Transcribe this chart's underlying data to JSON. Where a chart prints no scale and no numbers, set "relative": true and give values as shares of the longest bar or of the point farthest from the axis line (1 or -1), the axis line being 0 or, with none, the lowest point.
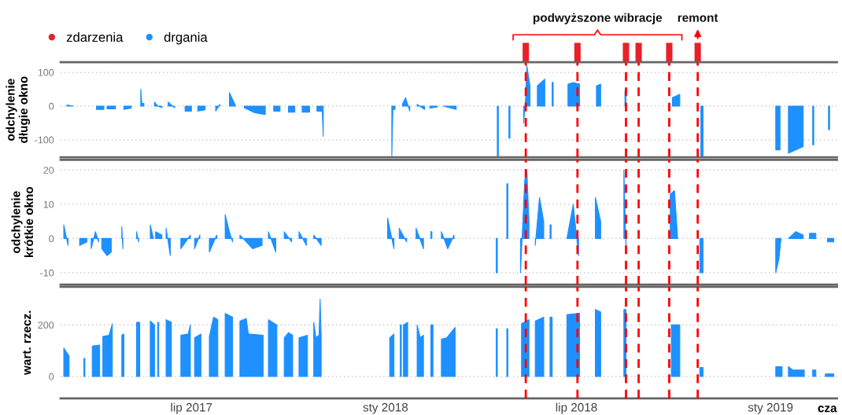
{
  "chart_data": [
    {
      "type": "bar",
      "relative": true,
      "xlim": [
        "2017-02-27",
        "2019-03-05"
      ],
      "tick_labels": false,
      "legend": "top left",
      "series": [
        {
          "name": "zdarzenia",
          "color": "#e8202a",
          "x": [
            "2018-05-14",
            "2018-07-02",
            "2018-08-17",
            "2018-08-29",
            "2018-09-27",
            "2018-10-24"
          ],
          "values": [
            1,
            1,
            1,
            1,
            1,
            1
          ]
        }
      ],
      "annotations": [
        "podwyższone wibracje",
        "remont"
      ]
    },
    {
      "type": "area",
      "ylabel": "odchylenie\ndługie okno",
      "xlim": [
        "2017-02-27",
        "2019-03-05"
      ],
      "ylim": [
        -152,
        130
      ],
      "yticks": [
        -100,
        0,
        100
      ],
      "grid": "y",
      "tick_labels": "y",
      "ref_lines": [
        {
          "axis": "x",
          "value": "2018-05-14",
          "color": "#ff0000",
          "line_style": "dashed"
        },
        {
          "axis": "x",
          "value": "2018-07-02",
          "color": "#ff0000",
          "line_style": "dashed"
        },
        {
          "axis": "x",
          "value": "2018-08-17",
          "color": "#ff0000",
          "line_style": "dashed"
        },
        {
          "axis": "x",
          "value": "2018-08-29",
          "color": "#ff0000",
          "line_style": "dashed"
        },
        {
          "axis": "x",
          "value": "2018-09-27",
          "color": "#ff0000",
          "line_style": "dashed"
        },
        {
          "axis": "x",
          "value": "2018-10-24",
          "color": "#ff0000",
          "line_style": "dashed"
        }
      ],
      "series": [
        {
          "name": "drgania",
          "color": "#1e90ff",
          "x": [
            "2017-03-05",
            "2017-03-11",
            "2017-03-20",
            "2017-04-02",
            "2017-04-09",
            "2017-04-10",
            "2017-04-12",
            "2017-04-20",
            "2017-04-24",
            "2017-04-28",
            "2017-05-05",
            "2017-05-09",
            "2017-05-14",
            "2017-05-15",
            "2017-05-17",
            "2017-05-20",
            "2017-05-27",
            "2017-05-30",
            "2017-06-03",
            "2017-06-06",
            "2017-06-09",
            "2017-06-15",
            "2017-06-20",
            "2017-06-25",
            "2017-07-01",
            "2017-07-04",
            "2017-07-07",
            "2017-07-14",
            "2017-07-18",
            "2017-07-24",
            "2017-07-28",
            "2017-08-01",
            "2017-08-06",
            "2017-08-09",
            "2017-08-12",
            "2017-08-16",
            "2017-08-20",
            "2017-08-30",
            "2017-09-09",
            "2017-09-13",
            "2017-09-17",
            "2017-09-23",
            "2017-09-27",
            "2017-10-01",
            "2017-10-07",
            "2017-10-10",
            "2017-10-14",
            "2017-10-21",
            "2017-10-24",
            "2017-10-28",
            "2017-11-02",
            "2017-11-03",
            "2017-12-15",
            "2018-01-07",
            "2018-01-08",
            "2018-01-10",
            "2018-01-13",
            "2018-01-17",
            "2018-01-20",
            "2018-01-24",
            "2018-01-28",
            "2018-01-31",
            "2018-02-07",
            "2018-02-10",
            "2018-02-12",
            "2018-02-19",
            "2018-02-21",
            "2018-02-25",
            "2018-03-09",
            "2018-04-01",
            "2018-04-17",
            "2018-04-18",
            "2018-04-22",
            "2018-04-28",
            "2018-04-29",
            "2018-05-05",
            "2018-05-12",
            "2018-05-14",
            "2018-05-15",
            "2018-05-18",
            "2018-05-21",
            "2018-05-25",
            "2018-06-01",
            "2018-06-04",
            "2018-06-08",
            "2018-06-09",
            "2018-06-15",
            "2018-06-23",
            "2018-06-28",
            "2018-07-04",
            "2018-07-12",
            "2018-07-20",
            "2018-07-24",
            "2018-08-05",
            "2018-08-16",
            "2018-08-17",
            "2018-09-10",
            "2018-09-30",
            "2018-10-07",
            "2018-10-20",
            "2018-10-27",
            "2018-10-29",
            "2018-12-01",
            "2019-01-06",
            "2019-01-10",
            "2019-01-14",
            "2019-01-18",
            "2019-02-01",
            "2019-02-05",
            "2019-02-10",
            "2019-02-11",
            "2019-02-18",
            "2019-02-25",
            "2019-02-26"
          ],
          "values": [
            3,
            0,
            null,
            -10,
            -10,
            null,
            -8,
            -8,
            null,
            -10,
            -6,
            null,
            50,
            8,
            8,
            null,
            12,
            0,
            -5,
            null,
            12,
            -5,
            null,
            -15,
            -15,
            null,
            -15,
            -11,
            null,
            -15,
            5,
            null,
            40,
            20,
            0,
            null,
            -5,
            -20,
            -25,
            null,
            -15,
            -15,
            null,
            -18,
            -18,
            null,
            -18,
            -18,
            null,
            -15,
            -15,
            -90,
            null,
            -149,
            -10,
            -10,
            null,
            5,
            25,
            -15,
            null,
            5,
            -10,
            null,
            -6,
            -3,
            null,
            0,
            -10,
            null,
            -149,
            -149,
            null,
            -95,
            -95,
            null,
            -50,
            30,
            120,
            60,
            null,
            60,
            80,
            null,
            70,
            70,
            null,
            65,
            70,
            65,
            null,
            60,
            65,
            null,
            45,
            45,
            null,
            25,
            35,
            null,
            -149,
            -149,
            null,
            -130,
            -130,
            null,
            -140,
            -120,
            null,
            -115,
            -115,
            null,
            -70,
            -70
          ]
        }
      ]
    },
    {
      "type": "area",
      "ylabel": "odchylenie\nkrótkie okno",
      "xlim": [
        "2017-02-27",
        "2019-03-05"
      ],
      "ylim": [
        -13.5,
        23
      ],
      "yticks": [
        -10,
        0,
        10,
        20
      ],
      "grid": "y",
      "tick_labels": "y",
      "ref_lines": [
        {
          "axis": "x",
          "value": "2018-05-14",
          "color": "#ff0000",
          "line_style": "dashed"
        },
        {
          "axis": "x",
          "value": "2018-07-02",
          "color": "#ff0000",
          "line_style": "dashed"
        },
        {
          "axis": "x",
          "value": "2018-08-17",
          "color": "#ff0000",
          "line_style": "dashed"
        },
        {
          "axis": "x",
          "value": "2018-08-29",
          "color": "#ff0000",
          "line_style": "dashed"
        },
        {
          "axis": "x",
          "value": "2018-09-27",
          "color": "#ff0000",
          "line_style": "dashed"
        },
        {
          "axis": "x",
          "value": "2018-10-24",
          "color": "#ff0000",
          "line_style": "dashed"
        }
      ],
      "series": [
        {
          "name": "drgania",
          "color": "#1e90ff",
          "x": [
            "2017-03-02",
            "2017-03-06",
            "2017-03-14",
            "2017-03-17",
            "2017-03-24",
            "2017-03-26",
            "2017-03-28",
            "2017-04-01",
            "2017-04-04",
            "2017-04-06",
            "2017-04-07",
            "2017-04-12",
            "2017-04-16",
            "2017-04-22",
            "2017-04-26",
            "2017-04-27",
            "2017-05-05",
            "2017-05-10",
            "2017-05-12",
            "2017-05-18",
            "2017-05-23",
            "2017-05-26",
            "2017-05-27",
            "2017-05-28",
            "2017-06-03",
            "2017-06-05",
            "2017-06-07",
            "2017-06-11",
            "2017-06-17",
            "2017-06-21",
            "2017-06-30",
            "2017-07-02",
            "2017-07-04",
            "2017-07-09",
            "2017-07-14",
            "2017-07-18",
            "2017-07-25",
            "2017-07-29",
            "2017-08-02",
            "2017-08-06",
            "2017-08-09",
            "2017-08-13",
            "2017-08-16",
            "2017-08-28",
            "2017-09-06",
            "2017-09-09",
            "2017-09-12",
            "2017-09-19",
            "2017-09-23",
            "2017-09-27",
            "2017-10-04",
            "2017-10-08",
            "2017-10-11",
            "2017-10-18",
            "2017-10-22",
            "2017-10-25",
            "2017-11-01",
            "2017-12-15",
            "2018-01-03",
            "2018-01-09",
            "2018-01-12",
            "2018-01-14",
            "2018-01-21",
            "2018-01-26",
            "2018-01-30",
            "2018-02-06",
            "2018-02-09",
            "2018-02-13",
            "2018-02-14",
            "2018-02-19",
            "2018-02-23",
            "2018-03-01",
            "2018-03-07",
            "2018-04-01",
            "2018-04-16",
            "2018-04-17",
            "2018-04-22",
            "2018-04-26",
            "2018-04-27",
            "2018-05-04",
            "2018-05-09",
            "2018-05-13",
            "2018-05-15",
            "2018-05-17",
            "2018-05-20",
            "2018-05-23",
            "2018-05-27",
            "2018-05-31",
            "2018-06-03",
            "2018-06-06",
            "2018-06-07",
            "2018-06-15",
            "2018-06-22",
            "2018-06-28",
            "2018-07-03",
            "2018-07-12",
            "2018-07-19",
            "2018-07-24",
            "2018-08-05",
            "2018-08-15",
            "2018-08-17",
            "2018-09-10",
            "2018-09-28",
            "2018-10-02",
            "2018-10-05",
            "2018-10-20",
            "2018-10-26",
            "2018-10-29",
            "2018-12-01",
            "2019-01-06",
            "2019-01-09",
            "2019-01-11",
            "2019-01-15",
            "2019-01-18",
            "2019-01-25",
            "2019-02-01",
            "2019-02-04",
            "2019-02-07",
            "2019-02-13",
            "2019-02-20",
            "2019-02-24",
            "2019-03-02"
          ],
          "values": [
            4,
            -2,
            null,
            -2,
            -1,
            null,
            -3,
            2,
            -1,
            null,
            -3,
            -5,
            -4,
            null,
            3.5,
            -3,
            null,
            2,
            -1,
            null,
            4,
            0,
            null,
            2,
            1,
            null,
            3,
            -5,
            null,
            -3,
            1,
            null,
            -3,
            1,
            null,
            -4,
            1,
            null,
            7,
            2,
            -1,
            null,
            1,
            -3,
            -2,
            null,
            2,
            -4,
            null,
            2,
            -1,
            null,
            2,
            -2,
            null,
            1,
            -2,
            null,
            6,
            -3,
            null,
            3,
            -1,
            null,
            3,
            -3,
            null,
            2,
            2,
            null,
            2,
            -3,
            1,
            null,
            -10,
            -10,
            null,
            16,
            16,
            null,
            -10,
            17,
            20,
            5,
            null,
            -2,
            12,
            5,
            null,
            4,
            4,
            null,
            0,
            10,
            -5,
            null,
            12,
            5,
            null,
            20,
            -3,
            null,
            13,
            14,
            0,
            null,
            -10,
            -10,
            null,
            -10,
            -6,
            0,
            null,
            0,
            2,
            1,
            null,
            1.5,
            1.5,
            null,
            -1,
            -1
          ]
        }
      ]
    },
    {
      "type": "area",
      "ylabel": "wart. rzecz.",
      "xlabel": "cza",
      "xlim": [
        "2017-02-27",
        "2019-03-05"
      ],
      "ylim": [
        -85,
        348
      ],
      "yticks": [
        0,
        200
      ],
      "grid": "y",
      "xticks": [
        {
          "value": "2017-07-01",
          "label": "lip 2017"
        },
        {
          "value": "2018-01-01",
          "label": "sty 2018"
        },
        {
          "value": "2018-07-01",
          "label": "lip 2018"
        },
        {
          "value": "2019-01-01",
          "label": "sty 2019"
        }
      ],
      "ref_lines": [
        {
          "axis": "x",
          "value": "2018-05-14",
          "color": "#ff0000",
          "line_style": "dashed"
        },
        {
          "axis": "x",
          "value": "2018-07-02",
          "color": "#ff0000",
          "line_style": "dashed"
        },
        {
          "axis": "x",
          "value": "2018-08-17",
          "color": "#ff0000",
          "line_style": "dashed"
        },
        {
          "axis": "x",
          "value": "2018-08-29",
          "color": "#ff0000",
          "line_style": "dashed"
        },
        {
          "axis": "x",
          "value": "2018-09-27",
          "color": "#ff0000",
          "line_style": "dashed"
        },
        {
          "axis": "x",
          "value": "2018-10-24",
          "color": "#ff0000",
          "line_style": "dashed"
        }
      ],
      "series": [
        {
          "name": "drgania",
          "color": "#1e90ff",
          "x": [
            "2017-03-02",
            "2017-03-07",
            "2017-03-14",
            "2017-03-21",
            "2017-03-22",
            "2017-03-25",
            "2017-03-29",
            "2017-04-05",
            "2017-04-06",
            "2017-04-08",
            "2017-04-14",
            "2017-04-17",
            "2017-04-22",
            "2017-04-26",
            "2017-04-28",
            "2017-05-04",
            "2017-05-10",
            "2017-05-13",
            "2017-05-18",
            "2017-05-23",
            "2017-05-27",
            "2017-05-28",
            "2017-05-30",
            "2017-05-31",
            "2017-06-03",
            "2017-06-07",
            "2017-06-12",
            "2017-06-17",
            "2017-06-21",
            "2017-06-28",
            "2017-06-30",
            "2017-07-02",
            "2017-07-04",
            "2017-07-10",
            "2017-07-14",
            "2017-07-18",
            "2017-07-22",
            "2017-07-26",
            "2017-07-29",
            "2017-08-02",
            "2017-08-09",
            "2017-08-12",
            "2017-08-16",
            "2017-08-22",
            "2017-08-24",
            "2017-09-07",
            "2017-09-09",
            "2017-09-12",
            "2017-09-20",
            "2017-09-23",
            "2017-09-27",
            "2017-10-01",
            "2017-10-05",
            "2017-10-08",
            "2017-10-11",
            "2017-10-19",
            "2017-10-22",
            "2017-10-25",
            "2017-10-27",
            "2017-10-30",
            "2017-10-31",
            "2017-11-01",
            "2017-12-15",
            "2018-01-05",
            "2018-01-09",
            "2018-01-12",
            "2018-01-15",
            "2018-01-16",
            "2018-01-17",
            "2018-01-18",
            "2018-01-22",
            "2018-01-26",
            "2018-01-31",
            "2018-02-03",
            "2018-02-06",
            "2018-02-10",
            "2018-02-13",
            "2018-02-15",
            "2018-02-19",
            "2018-02-23",
            "2018-02-28",
            "2018-03-08",
            "2018-04-01",
            "2018-04-16",
            "2018-04-17",
            "2018-04-22",
            "2018-04-26",
            "2018-04-27",
            "2018-05-04",
            "2018-05-10",
            "2018-05-17",
            "2018-05-20",
            "2018-05-23",
            "2018-05-31",
            "2018-06-03",
            "2018-06-06",
            "2018-06-08",
            "2018-06-15",
            "2018-06-22",
            "2018-07-04",
            "2018-07-12",
            "2018-07-19",
            "2018-07-24",
            "2018-08-05",
            "2018-08-15",
            "2018-08-17",
            "2018-09-10",
            "2018-09-29",
            "2018-10-07",
            "2018-10-20",
            "2018-10-26",
            "2018-10-29",
            "2018-12-01",
            "2019-01-06",
            "2019-01-12",
            "2019-01-15",
            "2019-01-18",
            "2019-01-22",
            "2019-02-02",
            "2019-02-06",
            "2019-02-10",
            "2019-02-13",
            "2019-02-19",
            "2019-02-22",
            "2019-03-02"
          ],
          "values": [
            110,
            80,
            null,
            70,
            70,
            null,
            118,
            122,
            null,
            155,
            160,
            205,
            null,
            160,
            165,
            null,
            210,
            210,
            null,
            215,
            200,
            null,
            210,
            210,
            null,
            220,
            210,
            null,
            160,
            165,
            200,
            null,
            150,
            165,
            null,
            155,
            230,
            220,
            null,
            245,
            230,
            null,
            215,
            225,
            165,
            160,
            null,
            220,
            200,
            null,
            150,
            170,
            160,
            null,
            150,
            160,
            null,
            210,
            150,
            160,
            300,
            160,
            null,
            150,
            165,
            null,
            200,
            200,
            null,
            200,
            210,
            null,
            200,
            150,
            160,
            null,
            200,
            200,
            null,
            145,
            150,
            190,
            null,
            185,
            185,
            null,
            185,
            185,
            null,
            205,
            220,
            null,
            215,
            230,
            null,
            230,
            230,
            null,
            240,
            245,
            null,
            260,
            250,
            null,
            260,
            260,
            null,
            200,
            200,
            null,
            35,
            35,
            null,
            38,
            38,
            null,
            38,
            25,
            25,
            null,
            25,
            25,
            null,
            10,
            10
          ]
        }
      ]
    }
  ]
}
